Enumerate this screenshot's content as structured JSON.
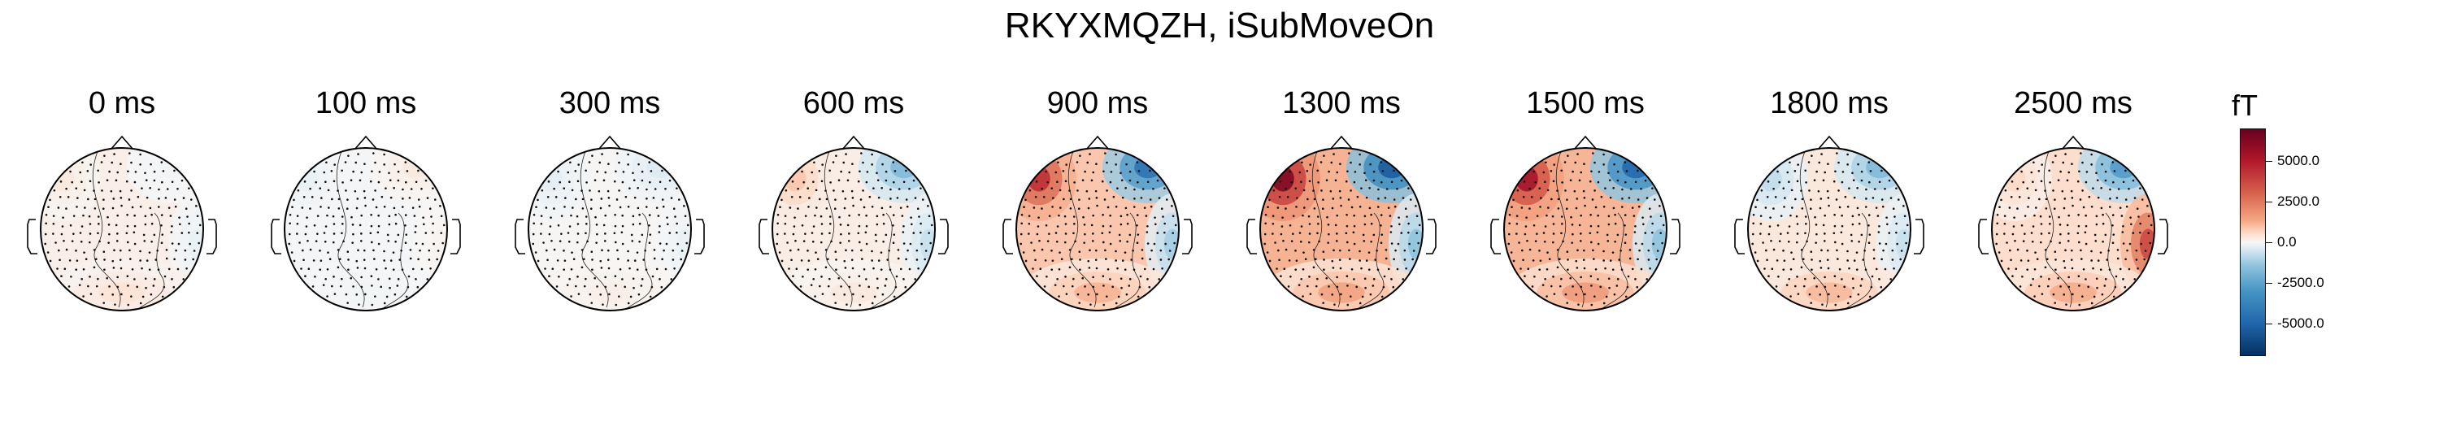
{
  "chart_data": {
    "type": "heatmap",
    "title": "RKYXMQZH, iSubMoveOn",
    "unit": "fT",
    "colormap": "RdBu_r",
    "vmin": -7000,
    "vmax": 7000,
    "colorbar_ticks": [
      "5000.0",
      "2500.0",
      "0.0",
      "-2500.0",
      "-5000.0"
    ],
    "colorbar_tick_values": [
      5000,
      2500,
      0,
      -2500,
      -5000
    ],
    "time_labels": [
      "0 ms",
      "100 ms",
      "300 ms",
      "600 ms",
      "900 ms",
      "1300 ms",
      "1500 ms",
      "1800 ms",
      "2500 ms"
    ],
    "times_ms": [
      0,
      100,
      300,
      600,
      900,
      1300,
      1500,
      1800,
      2500
    ],
    "topomaps": [
      {
        "time_ms": 0,
        "summary": "near-zero field, faint positive over left/center, faint negative right",
        "left_anterior": 300,
        "right_anterior": -100,
        "right_lateral": -200,
        "posterior": 400
      },
      {
        "time_ms": 100,
        "summary": "near-zero field, faint negative left, faint positive right",
        "left_anterior": -200,
        "right_anterior": 300,
        "right_lateral": 100,
        "posterior": -100
      },
      {
        "time_ms": 300,
        "summary": "near-zero field, faint negative surround, faint positive center",
        "left_anterior": -300,
        "right_anterior": -400,
        "right_lateral": -200,
        "posterior": 200
      },
      {
        "time_ms": 600,
        "summary": "weak positive left, weak negative right-anterior",
        "left_anterior": 900,
        "right_anterior": -1800,
        "right_lateral": -700,
        "posterior": 300
      },
      {
        "time_ms": 900,
        "summary": "positive left-anterior, negative right-anterior",
        "left_anterior": 4500,
        "right_anterior": -4500,
        "right_lateral": -1200,
        "posterior": 1200
      },
      {
        "time_ms": 1300,
        "summary": "strong positive left-anterior, strong negative right-anterior",
        "left_anterior": 6500,
        "right_anterior": -5500,
        "right_lateral": -1500,
        "posterior": 1500
      },
      {
        "time_ms": 1500,
        "summary": "strong positive left-anterior, strong negative right-anterior",
        "left_anterior": 5500,
        "right_anterior": -5000,
        "right_lateral": -1500,
        "posterior": 1700
      },
      {
        "time_ms": 1800,
        "summary": "weak negative anterior, weak positive posterior",
        "left_anterior": -800,
        "right_anterior": -1800,
        "right_lateral": -700,
        "posterior": 1100
      },
      {
        "time_ms": 2500,
        "summary": "negative right-anterior, positive right-lateral and posterior",
        "left_anterior": 600,
        "right_anterior": -2800,
        "right_lateral": 3800,
        "posterior": 1300
      }
    ]
  }
}
